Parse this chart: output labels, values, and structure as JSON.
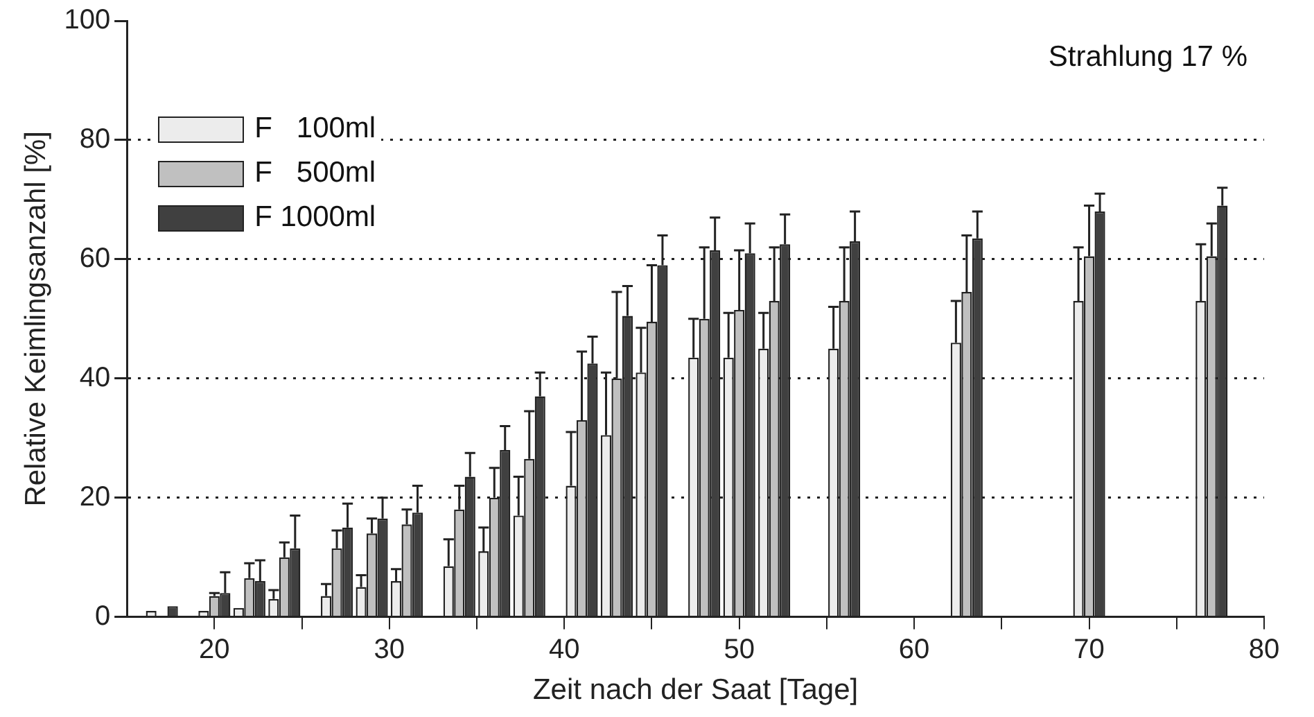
{
  "chart_data": {
    "type": "bar",
    "xlabel": "Zeit nach der Saat [Tage]",
    "ylabel": "Relative Keimlingsanzahl [%]",
    "annotations": [
      "Strahlung 17 %"
    ],
    "x": [
      17,
      20,
      22,
      24,
      27,
      29,
      31,
      34,
      36,
      38,
      41,
      43,
      45,
      48,
      50,
      52,
      56,
      63,
      70,
      77
    ],
    "series": [
      {
        "name": "F   100ml",
        "color": "#ececec",
        "values": [
          1,
          1,
          1.5,
          3,
          3.5,
          5,
          6,
          8.5,
          11,
          17,
          22,
          30.5,
          41,
          43.5,
          43.5,
          45,
          45,
          46,
          53,
          53
        ],
        "errors": [
          null,
          null,
          null,
          [
            3,
            4.5
          ],
          [
            3.5,
            5.5
          ],
          [
            5,
            7
          ],
          [
            6,
            8
          ],
          [
            8.5,
            13
          ],
          [
            11,
            15
          ],
          [
            17,
            23.5
          ],
          [
            22,
            31
          ],
          [
            30.5,
            41
          ],
          [
            41,
            48.5
          ],
          [
            43.5,
            50
          ],
          [
            43.5,
            51
          ],
          [
            45,
            51
          ],
          [
            45,
            52
          ],
          [
            46,
            53
          ],
          [
            53,
            62
          ],
          [
            53,
            62.5
          ]
        ]
      },
      {
        "name": "F   500ml",
        "color": "#c0c0c0",
        "values": [
          null,
          3.5,
          6.5,
          10,
          11.5,
          14,
          15.5,
          18,
          20,
          26.5,
          33,
          40,
          49.5,
          50,
          51.5,
          53,
          53,
          54.5,
          60.5,
          60.5
        ],
        "errors": [
          null,
          [
            3.5,
            4
          ],
          [
            6.5,
            9
          ],
          [
            10,
            12.5
          ],
          [
            11.5,
            14.5
          ],
          [
            14,
            16.5
          ],
          [
            15.5,
            18
          ],
          [
            18,
            22
          ],
          [
            20,
            25
          ],
          [
            26.5,
            34.5
          ],
          [
            33,
            44.5
          ],
          [
            40,
            54.5
          ],
          [
            49.5,
            59
          ],
          [
            50,
            62
          ],
          [
            51.5,
            61.5
          ],
          [
            53,
            62
          ],
          [
            53,
            62
          ],
          [
            54.5,
            64
          ],
          [
            60.5,
            69
          ],
          [
            60.5,
            66
          ]
        ]
      },
      {
        "name": "F 1000ml",
        "color": "#404040",
        "values": [
          1.8,
          4,
          6,
          11.5,
          15,
          16.5,
          17.5,
          23.5,
          28,
          37,
          42.5,
          50.5,
          59,
          61.5,
          61,
          62.5,
          63,
          63.5,
          68,
          69
        ],
        "errors": [
          null,
          [
            4,
            7.5
          ],
          [
            6,
            9.5
          ],
          [
            11.5,
            17
          ],
          [
            15,
            19
          ],
          [
            16.5,
            20
          ],
          [
            17.5,
            22
          ],
          [
            23.5,
            27.5
          ],
          [
            28,
            32
          ],
          [
            37,
            41
          ],
          [
            42.5,
            47
          ],
          [
            50.5,
            55.5
          ],
          [
            59,
            64
          ],
          [
            61.5,
            67
          ],
          [
            61,
            66
          ],
          [
            62.5,
            67.5
          ],
          [
            63,
            68
          ],
          [
            63.5,
            68
          ],
          [
            68,
            71
          ],
          [
            69,
            72
          ]
        ]
      }
    ],
    "xlim": [
      15,
      80
    ],
    "xticks": [
      20,
      {
        "value": 25,
        "label": null
      },
      30,
      {
        "value": 35,
        "label": null
      },
      40,
      {
        "value": 45,
        "label": null
      },
      50,
      {
        "value": 55,
        "label": null
      },
      60,
      {
        "value": 65,
        "label": null
      },
      70,
      {
        "value": 75,
        "label": null
      },
      80
    ],
    "ylim": [
      0,
      100
    ],
    "yticks": [
      0,
      20,
      40,
      60,
      80,
      100
    ],
    "grid": "y",
    "legend": "top left"
  }
}
